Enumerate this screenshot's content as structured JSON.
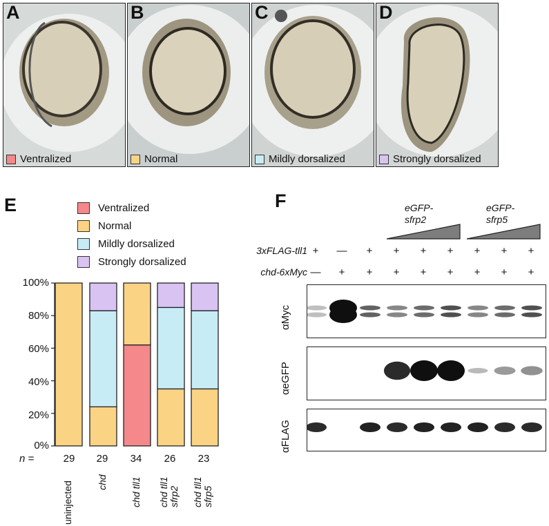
{
  "panels": [
    {
      "letter": "A",
      "caption": "Ventralized",
      "color": "#f4888a"
    },
    {
      "letter": "B",
      "caption": "Normal",
      "color": "#fbd385"
    },
    {
      "letter": "C",
      "caption": "Mildly dorsalized",
      "color": "#c7ecf6"
    },
    {
      "letter": "D",
      "caption": "Strongly dorsalized",
      "color": "#d9c3f3"
    }
  ],
  "panel_e": {
    "letter": "E",
    "legend": [
      {
        "label": "Ventralized",
        "color": "#f4888a"
      },
      {
        "label": "Normal",
        "color": "#fbd385"
      },
      {
        "label": "Mildly dorsalized",
        "color": "#c7ecf6"
      },
      {
        "label": "Strongly dorsalized",
        "color": "#d9c3f3"
      }
    ],
    "yticks": [
      "100%",
      "80%",
      "60%",
      "40%",
      "20%",
      "0%"
    ],
    "n_label": "n =",
    "n_values": [
      "29",
      "29",
      "34",
      "26",
      "23"
    ]
  },
  "chart_data": {
    "type": "bar",
    "stacked": true,
    "categories": [
      "uninjected",
      "chd",
      "chd tll1",
      "chd tll1 sfrp2",
      "chd tll1 sfrp5"
    ],
    "series": [
      {
        "name": "Ventralized",
        "values": [
          0,
          0,
          62,
          0,
          0
        ]
      },
      {
        "name": "Normal",
        "values": [
          100,
          24,
          38,
          35,
          35
        ]
      },
      {
        "name": "Mildly dorsalized",
        "values": [
          0,
          59,
          0,
          50,
          48
        ]
      },
      {
        "name": "Strongly dorsalized",
        "values": [
          0,
          17,
          0,
          15,
          17
        ]
      }
    ],
    "ylim": [
      0,
      100
    ],
    "yticks": [
      "100%",
      "80%",
      "60%",
      "40%",
      "20%",
      "0%"
    ],
    "legend": "top"
  },
  "panel_f": {
    "letter": "F",
    "gfp_sfrp2": [
      "eGFP-",
      "sfrp2"
    ],
    "gfp_sfrp5": [
      "eGFP-",
      "sfrp5"
    ],
    "row1_label": "3xFLAG-tll1",
    "row1_signs": [
      "+",
      "—",
      "+",
      "+",
      "+",
      "+",
      "+",
      "+",
      "+"
    ],
    "row2_label": "chd-6xMyc",
    "row2_signs": [
      "—",
      "+",
      "+",
      "+",
      "+",
      "+",
      "+",
      "+",
      "+"
    ],
    "blots": [
      {
        "label": "αMyc",
        "intensities": [
          0.05,
          1.0,
          0.55,
          0.35,
          0.5,
          0.65,
          0.35,
          0.5,
          0.65
        ]
      },
      {
        "label": "αeGFP",
        "intensities": [
          0,
          0,
          0,
          0.85,
          1.0,
          1.0,
          0.08,
          0.25,
          0.3
        ]
      },
      {
        "label": "αFLAG",
        "intensities": [
          0.85,
          0,
          0.9,
          0.85,
          0.9,
          0.9,
          0.9,
          0.85,
          0.85
        ]
      }
    ]
  }
}
